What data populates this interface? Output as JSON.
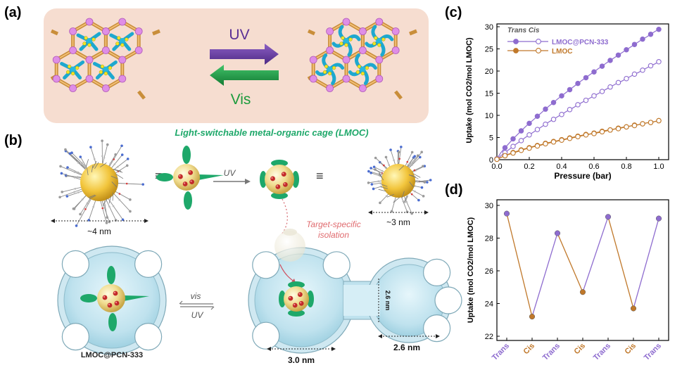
{
  "panels": {
    "a": {
      "label": "(a)",
      "uv": "UV",
      "vis": "Vis"
    },
    "b": {
      "label": "(b)",
      "title": "Light-switchable metal-organic cage (LMOC)",
      "size_large": "~4 nm",
      "size_small": "~3 nm",
      "uv": "UV",
      "target_line1": "Target-specific",
      "target_line2": "isolation",
      "vis_small": "vis",
      "uv_small": "UV",
      "composite": "LMOC@PCN-333",
      "pore_main": "3.0 nm",
      "pore_side": "2.6 nm",
      "window": "2.6 nm"
    },
    "c": {
      "label": "(c)"
    },
    "d": {
      "label": "(d)"
    }
  },
  "colors": {
    "lmoc_pcn": "#8e6ccf",
    "lmoc": "#c0782a",
    "green": "#1ea86a",
    "uv_arrow": "#6b3fa0",
    "vis_arrow": "#1c9a3c",
    "pink": "#f6ddd0",
    "pore": "#c8e7f2"
  },
  "chart_data": [
    {
      "type": "line",
      "panel": "c",
      "xlabel": "Pressure (bar)",
      "ylabel": "Uptake (mol CO2/mol LMOC)",
      "xlim": [
        0,
        1.0
      ],
      "ylim": [
        0,
        30
      ],
      "xticks": [
        "0.0",
        "0.2",
        "0.4",
        "0.6",
        "0.8",
        "1.0"
      ],
      "yticks": [
        "0",
        "5",
        "10",
        "15",
        "20",
        "25",
        "30"
      ],
      "legend_header": [
        "Trans",
        "Cis"
      ],
      "legend_position": "top-left",
      "x": [
        0.0,
        0.025,
        0.05,
        0.075,
        0.1,
        0.125,
        0.15,
        0.175,
        0.2,
        0.225,
        0.25,
        0.275,
        0.3,
        0.325,
        0.35,
        0.375,
        0.4,
        0.425,
        0.45,
        0.475,
        0.5,
        0.525,
        0.55,
        0.575,
        0.6,
        0.625,
        0.65,
        0.675,
        0.7,
        0.725,
        0.75,
        0.775,
        0.8,
        0.825,
        0.85,
        0.875,
        0.9,
        0.925,
        0.95,
        0.975,
        1.0
      ],
      "series": [
        {
          "name": "LMOC@PCN-333",
          "state": "Trans",
          "filled": true,
          "color": "#8e6ccf",
          "values": [
            0.2,
            1.6,
            2.7,
            3.7,
            4.7,
            5.6,
            6.5,
            7.4,
            8.2,
            9.0,
            9.8,
            10.6,
            11.4,
            12.2,
            12.9,
            13.7,
            14.4,
            15.1,
            15.8,
            16.5,
            17.2,
            17.9,
            18.5,
            19.2,
            19.8,
            20.5,
            21.1,
            21.8,
            22.4,
            23.0,
            23.6,
            24.2,
            24.8,
            25.4,
            26.0,
            26.6,
            27.2,
            27.7,
            28.3,
            28.9,
            29.4
          ]
        },
        {
          "name": "LMOC@PCN-333",
          "state": "Cis",
          "filled": false,
          "color": "#8e6ccf",
          "values": [
            0.1,
            0.9,
            1.6,
            2.3,
            3.0,
            3.7,
            4.3,
            5.0,
            5.6,
            6.2,
            6.8,
            7.4,
            8.0,
            8.6,
            9.1,
            9.7,
            10.2,
            10.8,
            11.3,
            11.8,
            12.4,
            12.9,
            13.4,
            13.9,
            14.4,
            14.9,
            15.4,
            15.9,
            16.4,
            16.9,
            17.4,
            17.8,
            18.3,
            18.8,
            19.3,
            19.7,
            20.2,
            20.7,
            21.2,
            21.6,
            22.1
          ]
        },
        {
          "name": "LMOC",
          "state": "Trans",
          "filled": true,
          "color": "#c0782a",
          "values": [
            0.1,
            0.5,
            0.9,
            1.3,
            1.6,
            1.9,
            2.2,
            2.5,
            2.7,
            3.0,
            3.2,
            3.4,
            3.7,
            3.9,
            4.1,
            4.3,
            4.5,
            4.7,
            4.9,
            5.1,
            5.3,
            5.5,
            5.7,
            5.8,
            6.0,
            6.2,
            6.4,
            6.6,
            6.7,
            6.9,
            7.1,
            7.3,
            7.4,
            7.6,
            7.8,
            7.9,
            8.1,
            8.3,
            8.4,
            8.6,
            8.8
          ]
        },
        {
          "name": "LMOC",
          "state": "Cis",
          "filled": false,
          "color": "#c0782a",
          "values": [
            0.1,
            0.5,
            0.9,
            1.2,
            1.5,
            1.8,
            2.1,
            2.4,
            2.6,
            2.9,
            3.1,
            3.3,
            3.6,
            3.8,
            4.0,
            4.2,
            4.4,
            4.6,
            4.8,
            5.0,
            5.2,
            5.4,
            5.6,
            5.8,
            5.9,
            6.1,
            6.3,
            6.5,
            6.7,
            6.9,
            7.0,
            7.2,
            7.4,
            7.6,
            7.7,
            7.9,
            8.1,
            8.3,
            8.4,
            8.6,
            8.8
          ]
        }
      ]
    },
    {
      "type": "line",
      "panel": "d",
      "ylabel": "Uptake (mol CO2/mol LMOC)",
      "ylim": [
        22,
        30
      ],
      "yticks": [
        "22",
        "24",
        "26",
        "28",
        "30"
      ],
      "categories": [
        "Trans",
        "Cis",
        "Trans",
        "Cis",
        "Trans",
        "Cis",
        "Trans"
      ],
      "values": [
        29.5,
        23.2,
        28.3,
        24.7,
        29.3,
        23.7,
        29.2
      ]
    }
  ]
}
